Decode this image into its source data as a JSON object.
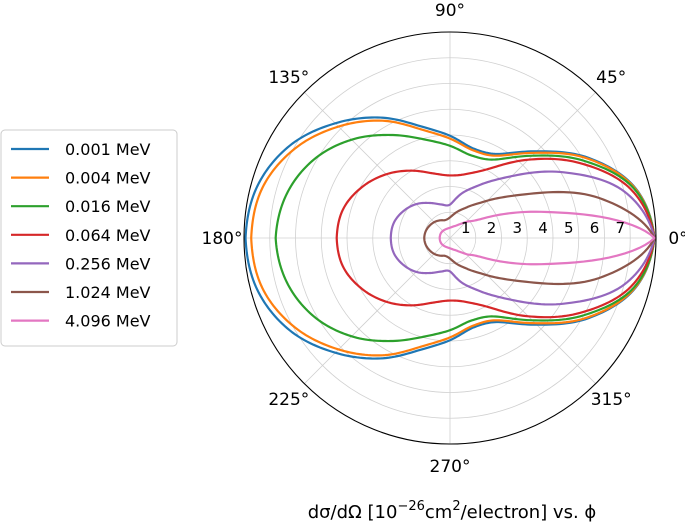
{
  "chart_data": {
    "type": "line",
    "projection": "polar",
    "title": "",
    "xlabel": "dσ/dΩ [10⁻²⁶cm²/electron] vs. ϕ",
    "xlabel_parts": {
      "pre": "dσ/dΩ [10",
      "exp1": "−26",
      "mid": "cm",
      "exp2": "2",
      "post": "/electron] vs. ϕ"
    },
    "angle_ticks": [
      "0°",
      "45°",
      "90°",
      "135°",
      "180°",
      "225°",
      "270°",
      "315°"
    ],
    "rlim": [
      0,
      8
    ],
    "radial_ticks": [
      "1",
      "2",
      "3",
      "4",
      "5",
      "6",
      "7"
    ],
    "grid": true,
    "legend_position": "left",
    "angle_unit": "deg",
    "angles": [
      0,
      15,
      30,
      45,
      60,
      75,
      90,
      105,
      120,
      135,
      150,
      165,
      180
    ],
    "series": [
      {
        "name": "0.001 MeV",
        "color": "#1f77b4",
        "values": [
          7.94,
          7.46,
          6.22,
          4.76,
          3.77,
          3.59,
          3.97,
          4.5,
          5.4,
          6.3,
          7.18,
          7.75,
          7.94
        ]
      },
      {
        "name": "0.004 MeV",
        "color": "#ff7f0e",
        "values": [
          7.94,
          7.44,
          6.17,
          4.68,
          3.69,
          3.52,
          3.86,
          4.37,
          5.26,
          6.12,
          6.95,
          7.54,
          7.72
        ]
      },
      {
        "name": "0.016 MeV",
        "color": "#2ca02c",
        "values": [
          7.94,
          7.4,
          6.0,
          4.52,
          3.52,
          3.31,
          3.58,
          3.97,
          4.62,
          5.4,
          6.1,
          6.57,
          6.77
        ]
      },
      {
        "name": "0.064 MeV",
        "color": "#d62728",
        "values": [
          7.94,
          7.28,
          5.82,
          4.3,
          3.12,
          2.58,
          2.43,
          2.6,
          3.02,
          3.5,
          3.95,
          4.3,
          4.4
        ]
      },
      {
        "name": "0.256 MeV",
        "color": "#9467bd",
        "values": [
          7.94,
          7.0,
          5.1,
          3.4,
          2.4,
          1.8,
          1.3,
          1.35,
          1.57,
          1.86,
          2.09,
          2.26,
          2.3
        ]
      },
      {
        "name": "1.024 MeV",
        "color": "#8c564b",
        "values": [
          7.94,
          6.0,
          3.4,
          2.05,
          1.4,
          1.05,
          0.8,
          0.72,
          0.79,
          0.87,
          0.93,
          0.98,
          1.0
        ]
      },
      {
        "name": "4.096 MeV",
        "color": "#e377c2",
        "values": [
          7.94,
          3.9,
          1.55,
          0.88,
          0.58,
          0.46,
          0.4,
          0.38,
          0.38,
          0.39,
          0.4,
          0.4,
          0.4
        ]
      }
    ]
  }
}
